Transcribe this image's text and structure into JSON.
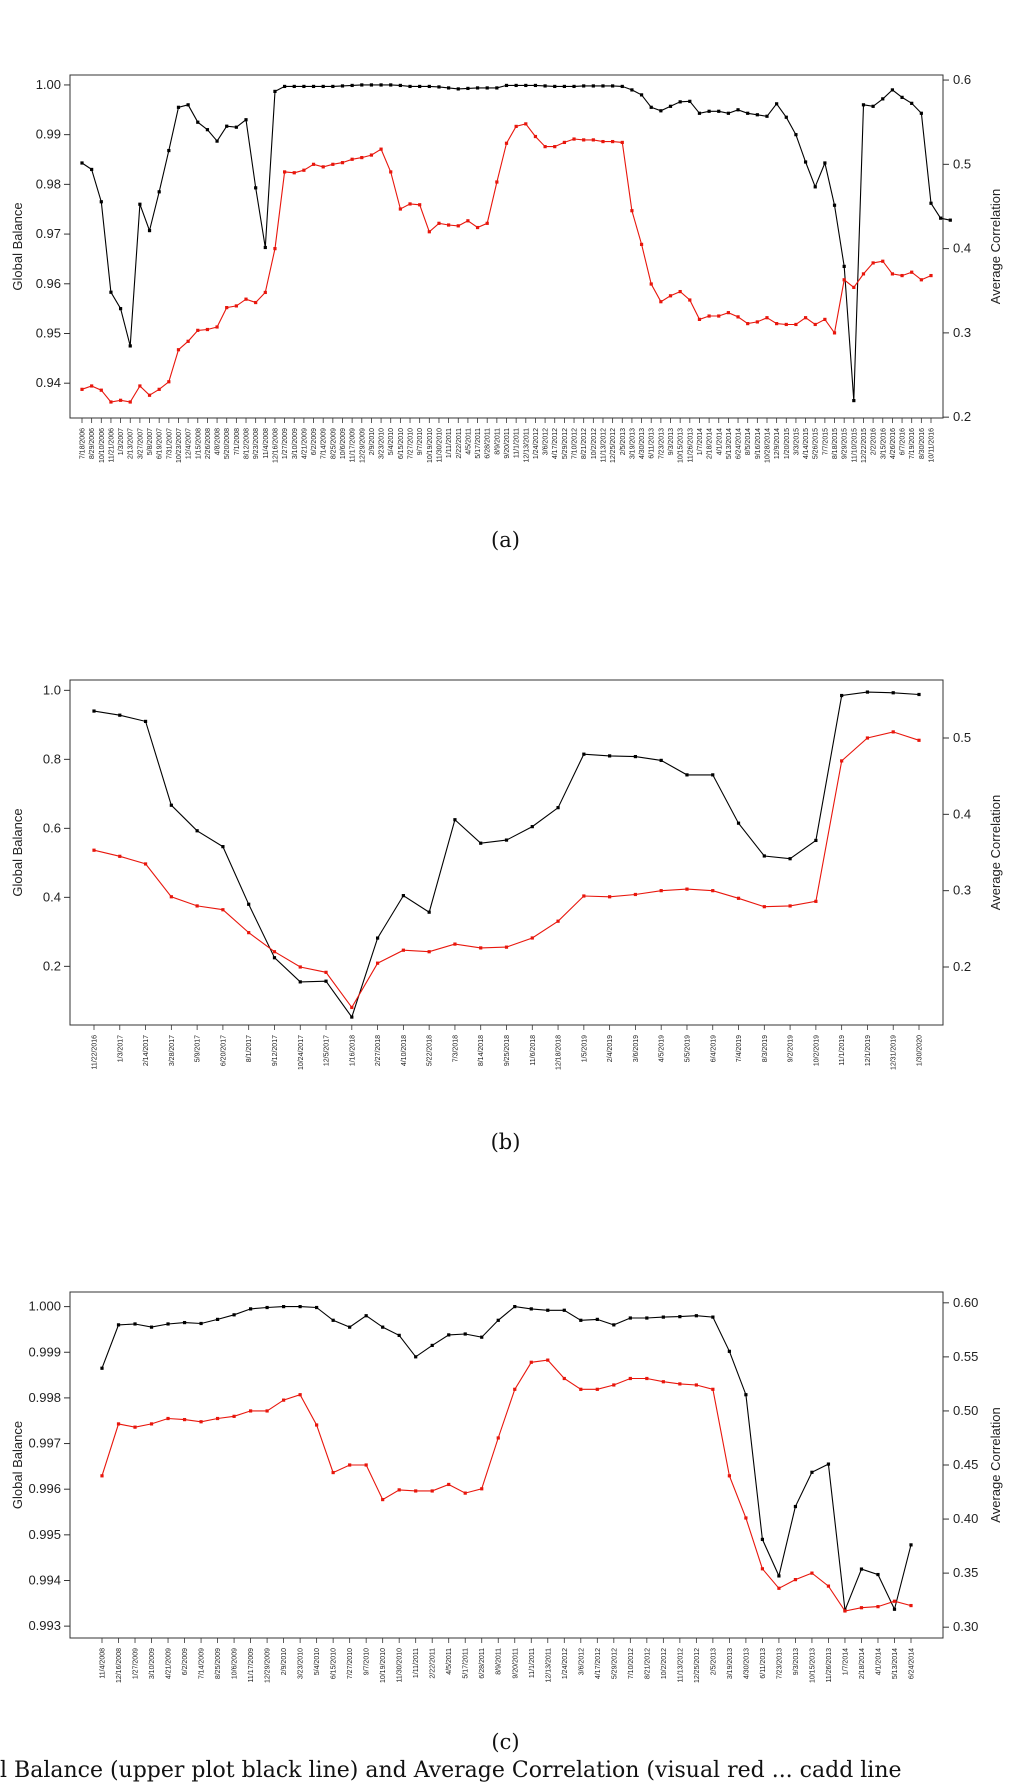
{
  "chart_data": [
    {
      "type": "line",
      "panel_label": "(a)",
      "y_left_label": "Global Balance",
      "y_right_label": "Average Correlation",
      "y_left_lim": [
        0.933,
        1.002
      ],
      "y_left_ticks": [
        "0.94",
        "0.95",
        "0.96",
        "0.97",
        "0.98",
        "0.99",
        "1.00"
      ],
      "y_right_lim": [
        0.199,
        0.606
      ],
      "y_right_ticks": [
        "0.2",
        "0.3",
        "0.4",
        "0.5",
        "0.6"
      ],
      "x_tick_labels": [
        "7/18/2006",
        "8/29/2006",
        "10/10/2006",
        "11/21/2006",
        "1/3/2007",
        "2/13/2007",
        "3/27/2007",
        "5/8/2007",
        "6/19/2007",
        "7/31/2007",
        "10/23/2007",
        "12/4/2007",
        "1/15/2008",
        "2/26/2008",
        "4/8/2008",
        "5/20/2008",
        "7/1/2008",
        "8/12/2008",
        "9/23/2008",
        "11/4/2008",
        "12/16/2008",
        "1/27/2009",
        "3/10/2009",
        "4/21/2009",
        "6/2/2009",
        "7/14/2009",
        "8/25/2009",
        "10/6/2009",
        "11/17/2009",
        "12/29/2009",
        "2/9/2010",
        "3/23/2010",
        "5/4/2010",
        "6/15/2010",
        "7/27/2010",
        "9/7/2010",
        "10/19/2010",
        "11/30/2010",
        "1/11/2011",
        "2/22/2011",
        "4/5/2011",
        "5/17/2011",
        "6/28/2011",
        "8/9/2011",
        "9/20/2011",
        "11/1/2011",
        "12/13/2011",
        "1/24/2012",
        "3/6/2012",
        "4/17/2012",
        "5/29/2012",
        "7/10/2012",
        "8/21/2012",
        "10/2/2012",
        "11/13/2012",
        "12/25/2012",
        "2/5/2013",
        "3/19/2013",
        "4/30/2013",
        "6/11/2013",
        "7/23/2013",
        "9/3/2013",
        "10/15/2013",
        "11/26/2013",
        "1/7/2014",
        "2/18/2014",
        "4/1/2014",
        "5/13/2014",
        "6/24/2014",
        "8/5/2014",
        "9/16/2014",
        "10/28/2014",
        "12/9/2014",
        "1/20/2015",
        "3/3/2015",
        "4/14/2015",
        "5/26/2015",
        "7/7/2015",
        "8/18/2015",
        "9/29/2015",
        "11/10/2015",
        "12/22/2015",
        "2/2/2016",
        "3/15/2016",
        "4/26/2016",
        "6/7/2016",
        "7/19/2016",
        "8/30/2016",
        "10/11/2016"
      ],
      "series": [
        {
          "color": "#000000",
          "axis": "left",
          "values": [
            0.9843,
            0.983,
            0.9765,
            0.9583,
            0.955,
            0.9475,
            0.976,
            0.9707,
            0.9785,
            0.9868,
            0.9955,
            0.996,
            0.9925,
            0.991,
            0.9887,
            0.9917,
            0.9915,
            0.993,
            0.9793,
            0.9673,
            0.9987,
            0.9997,
            0.9997,
            0.9997,
            0.9997,
            0.9997,
            0.9997,
            0.9998,
            0.9999,
            1.0,
            1.0,
            1.0,
            1.0,
            0.9999,
            0.9997,
            0.9997,
            0.9997,
            0.9996,
            0.9994,
            0.9992,
            0.9993,
            0.9994,
            0.9994,
            0.9994,
            0.9999,
            0.9999,
            0.9999,
            0.9999,
            0.9998,
            0.9997,
            0.9997,
            0.9997,
            0.9998,
            0.9998,
            0.9998,
            0.9998,
            0.9997,
            0.999,
            0.998,
            0.9955,
            0.9948,
            0.9957,
            0.9966,
            0.9967,
            0.9943,
            0.9947,
            0.9947,
            0.9943,
            0.995,
            0.9943,
            0.994,
            0.9937,
            0.9962,
            0.9935,
            0.99,
            0.9845,
            0.9795,
            0.9843,
            0.9758,
            0.9635,
            0.9365,
            0.996,
            0.9957,
            0.9972,
            0.999,
            0.9975,
            0.9963,
            0.9943,
            0.9762,
            0.9732,
            0.9728
          ]
        },
        {
          "color": "#e8160c",
          "axis": "right",
          "values": [
            0.233,
            0.237,
            0.232,
            0.218,
            0.22,
            0.218,
            0.237,
            0.226,
            0.233,
            0.242,
            0.28,
            0.29,
            0.303,
            0.304,
            0.307,
            0.33,
            0.332,
            0.34,
            0.336,
            0.348,
            0.4,
            0.491,
            0.49,
            0.493,
            0.5,
            0.497,
            0.5,
            0.502,
            0.506,
            0.508,
            0.511,
            0.518,
            0.491,
            0.447,
            0.453,
            0.452,
            0.42,
            0.43,
            0.428,
            0.427,
            0.433,
            0.425,
            0.43,
            0.479,
            0.525,
            0.545,
            0.548,
            0.533,
            0.521,
            0.521,
            0.526,
            0.53,
            0.529,
            0.529,
            0.527,
            0.527,
            0.526,
            0.445,
            0.405,
            0.358,
            0.337,
            0.344,
            0.349,
            0.339,
            0.316,
            0.32,
            0.32,
            0.324,
            0.319,
            0.311,
            0.313,
            0.318,
            0.311,
            0.31,
            0.31,
            0.318,
            0.31,
            0.316,
            0.3,
            0.363,
            0.354,
            0.37,
            0.383,
            0.385,
            0.37,
            0.368,
            0.372,
            0.363,
            0.368
          ]
        }
      ]
    },
    {
      "type": "line",
      "panel_label": "(b)",
      "y_left_label": "Global Balance",
      "y_right_label": "Average Correlation",
      "y_left_lim": [
        0.03,
        1.03
      ],
      "y_left_ticks": [
        "0.2",
        "0.4",
        "0.6",
        "0.8",
        "1.0"
      ],
      "y_right_lim": [
        0.124,
        0.576
      ],
      "y_right_ticks": [
        "0.2",
        "0.3",
        "0.4",
        "0.5"
      ],
      "x_tick_labels": [
        "11/22/2016",
        "1/3/2017",
        "2/14/2017",
        "3/28/2017",
        "5/9/2017",
        "6/20/2017",
        "8/1/2017",
        "9/12/2017",
        "10/24/2017",
        "12/5/2017",
        "1/16/2018",
        "2/27/2018",
        "4/10/2018",
        "5/22/2018",
        "7/3/2018",
        "8/14/2018",
        "9/25/2018",
        "11/6/2018",
        "12/18/2018",
        "1/5/2019",
        "2/4/2019",
        "3/6/2019",
        "4/5/2019",
        "5/5/2019",
        "6/4/2019",
        "7/4/2019",
        "8/3/2019",
        "9/2/2019",
        "10/2/2019",
        "11/1/2019",
        "12/1/2019",
        "12/31/2019",
        "1/30/2020"
      ],
      "series": [
        {
          "color": "#000000",
          "axis": "left",
          "values": [
            0.94,
            0.928,
            0.91,
            0.667,
            0.593,
            0.547,
            0.38,
            0.225,
            0.155,
            0.157,
            0.053,
            0.282,
            0.405,
            0.357,
            0.625,
            0.557,
            0.566,
            0.605,
            0.66,
            0.815,
            0.81,
            0.808,
            0.797,
            0.755,
            0.755,
            0.615,
            0.52,
            0.512,
            0.565,
            0.985,
            0.995,
            0.993,
            0.988
          ]
        },
        {
          "color": "#e8160c",
          "axis": "right",
          "values": [
            0.353,
            0.345,
            0.335,
            0.292,
            0.28,
            0.275,
            0.245,
            0.22,
            0.2,
            0.193,
            0.147,
            0.205,
            0.222,
            0.22,
            0.23,
            0.225,
            0.226,
            0.238,
            0.26,
            0.293,
            0.292,
            0.295,
            0.3,
            0.302,
            0.3,
            0.29,
            0.279,
            0.28,
            0.286,
            0.47,
            0.5,
            0.508,
            0.497
          ]
        }
      ]
    },
    {
      "type": "line",
      "panel_label": "(c)",
      "y_left_label": "Global Balance",
      "y_right_label": "Average Correlation",
      "y_left_lim": [
        0.99274,
        1.00032
      ],
      "y_left_ticks": [
        "0.993",
        "0.994",
        "0.995",
        "0.996",
        "0.997",
        "0.998",
        "0.999",
        "1.000"
      ],
      "y_right_lim": [
        0.29,
        0.61
      ],
      "y_right_ticks": [
        "0.30",
        "0.35",
        "0.40",
        "0.45",
        "0.50",
        "0.55",
        "0.60"
      ],
      "x_tick_labels": [
        "11/4/2008",
        "12/16/2008",
        "1/27/2009",
        "3/10/2009",
        "4/21/2009",
        "6/2/2009",
        "7/14/2009",
        "8/25/2009",
        "10/6/2009",
        "11/17/2009",
        "12/29/2009",
        "2/9/2010",
        "3/23/2010",
        "5/4/2010",
        "6/15/2010",
        "7/27/2010",
        "9/7/2010",
        "10/19/2010",
        "11/30/2010",
        "1/11/2011",
        "2/22/2011",
        "4/5/2011",
        "5/17/2011",
        "6/28/2011",
        "8/9/2011",
        "9/20/2011",
        "11/1/2011",
        "12/13/2011",
        "1/24/2012",
        "3/6/2012",
        "4/17/2012",
        "5/29/2012",
        "7/10/2012",
        "8/21/2012",
        "10/2/2012",
        "11/13/2012",
        "12/25/2012",
        "2/5/2013",
        "3/19/2013",
        "4/30/2013",
        "6/11/2013",
        "7/23/2013",
        "9/3/2013",
        "10/15/2013",
        "11/26/2013",
        "1/7/2014",
        "2/18/2014",
        "4/1/2014",
        "5/13/2014",
        "6/24/2014"
      ],
      "series": [
        {
          "color": "#000000",
          "axis": "left",
          "values": [
            0.99865,
            0.9996,
            0.99962,
            0.99955,
            0.99962,
            0.99965,
            0.99963,
            0.99972,
            0.99982,
            0.99995,
            0.99998,
            1.0,
            1.0,
            0.99998,
            0.9997,
            0.99955,
            0.9998,
            0.99955,
            0.99937,
            0.9989,
            0.99915,
            0.99938,
            0.9994,
            0.99933,
            0.9997,
            1.0,
            0.99995,
            0.99992,
            0.99992,
            0.9997,
            0.99972,
            0.9996,
            0.99975,
            0.99975,
            0.99977,
            0.99978,
            0.9998,
            0.99977,
            0.99902,
            0.99807,
            0.9949,
            0.9941,
            0.99562,
            0.99637,
            0.99655,
            0.99335,
            0.99425,
            0.99413,
            0.99337,
            0.99478
          ]
        },
        {
          "color": "#e8160c",
          "axis": "right",
          "values": [
            0.44,
            0.488,
            0.485,
            0.488,
            0.493,
            0.492,
            0.49,
            0.493,
            0.495,
            0.5,
            0.5,
            0.51,
            0.515,
            0.487,
            0.443,
            0.45,
            0.45,
            0.418,
            0.427,
            0.426,
            0.426,
            0.432,
            0.424,
            0.428,
            0.475,
            0.52,
            0.545,
            0.547,
            0.53,
            0.52,
            0.52,
            0.524,
            0.53,
            0.53,
            0.527,
            0.525,
            0.524,
            0.52,
            0.44,
            0.401,
            0.354,
            0.336,
            0.344,
            0.35,
            0.338,
            0.315,
            0.318,
            0.319,
            0.324,
            0.32
          ]
        }
      ]
    }
  ],
  "caption_fragment": "l Balance (upper plot black line) and Average Correlation (visual red ... cadd line"
}
